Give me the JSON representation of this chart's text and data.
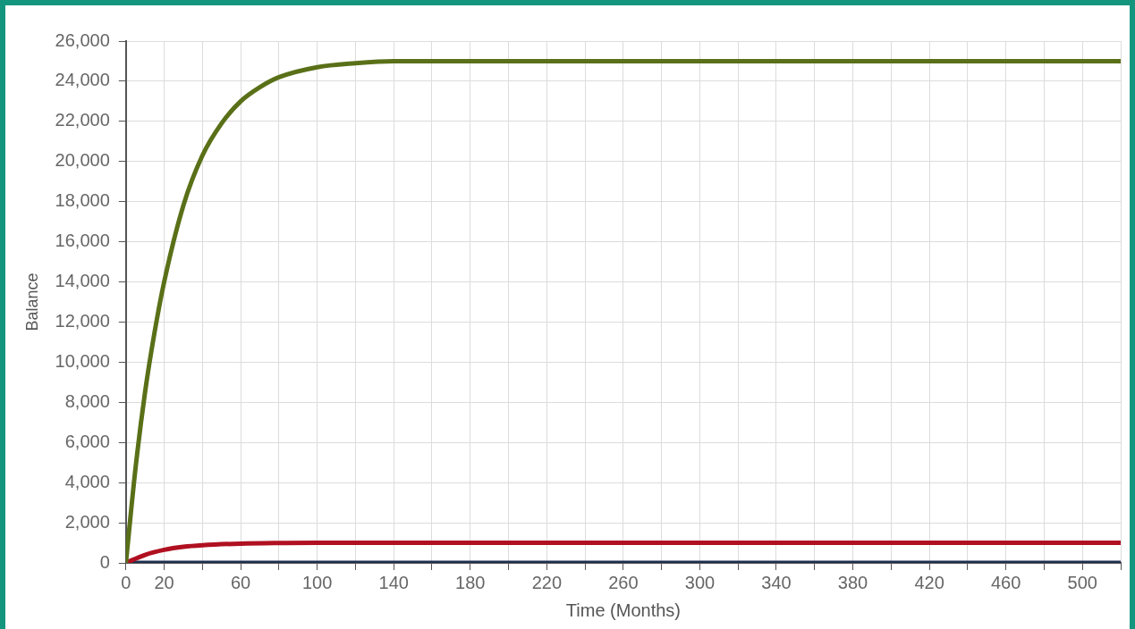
{
  "chart_data": {
    "type": "line",
    "xlabel": "Time (Months)",
    "ylabel": "Balance",
    "xlim": [
      0,
      520
    ],
    "xticks": [
      0,
      20,
      {
        "value": 40,
        "label": null
      },
      60,
      {
        "value": 80,
        "label": null
      },
      100,
      {
        "value": 120,
        "label": null
      },
      140,
      {
        "value": 160,
        "label": null
      },
      180,
      {
        "value": 200,
        "label": null
      },
      220,
      {
        "value": 240,
        "label": null
      },
      260,
      {
        "value": 280,
        "label": null
      },
      300,
      {
        "value": 320,
        "label": null
      },
      340,
      {
        "value": 360,
        "label": null
      },
      380,
      {
        "value": 400,
        "label": null
      },
      420,
      {
        "value": 440,
        "label": null
      },
      460,
      {
        "value": 480,
        "label": null
      },
      500,
      {
        "value": 520,
        "label": null
      }
    ],
    "ylim": [
      0,
      26000
    ],
    "yticks": [
      0,
      {
        "value": 2000,
        "label": "2,000"
      },
      {
        "value": 4000,
        "label": "4,000"
      },
      {
        "value": 6000,
        "label": "6,000"
      },
      {
        "value": 8000,
        "label": "8,000"
      },
      {
        "value": 10000,
        "label": "10,000"
      },
      {
        "value": 12000,
        "label": "12,000"
      },
      {
        "value": 14000,
        "label": "14,000"
      },
      {
        "value": 16000,
        "label": "16,000"
      },
      {
        "value": 18000,
        "label": "18,000"
      },
      {
        "value": 20000,
        "label": "20,000"
      },
      {
        "value": 22000,
        "label": "22,000"
      },
      {
        "value": 24000,
        "label": "24,000"
      },
      {
        "value": 26000,
        "label": "26,000"
      }
    ],
    "grid": true,
    "marker": "none",
    "line_style": "solid",
    "series": [
      {
        "color": "#5a7018",
        "x": [
          0,
          5,
          10,
          15,
          20,
          30,
          40,
          50,
          60,
          70,
          80,
          100,
          120,
          140,
          200,
          300,
          400,
          520
        ],
        "values": [
          0,
          4700,
          8500,
          11500,
          14000,
          17800,
          20300,
          21900,
          23000,
          23700,
          24200,
          24700,
          24900,
          25000,
          25000,
          25000,
          25000,
          25000
        ]
      },
      {
        "color": "#b01020",
        "x": [
          0,
          10,
          20,
          30,
          40,
          60,
          80,
          100,
          200,
          300,
          400,
          520
        ],
        "values": [
          0,
          400,
          650,
          800,
          880,
          960,
          990,
          1000,
          1000,
          1000,
          1000,
          1000
        ]
      },
      {
        "color": "#1f3050",
        "x": [
          0,
          100,
          200,
          300,
          400,
          520
        ],
        "values": [
          0,
          0,
          0,
          0,
          0,
          0
        ]
      }
    ]
  }
}
